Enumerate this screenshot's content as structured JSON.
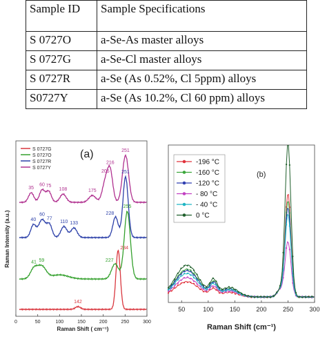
{
  "table": {
    "headers": [
      "Sample ID",
      "Sample Specifications"
    ],
    "rows": [
      [
        "S 0727O",
        "a-Se-As master alloys"
      ],
      [
        "S 0727G",
        "a-Se-Cl master alloys"
      ],
      [
        "S 0727R",
        "a-Se (As 0.52%, Cl 5ppm) alloys"
      ],
      [
        "S0727Y",
        "a-Se (As 10.2%, Cl 60 ppm) alloys"
      ]
    ]
  },
  "chart_data": [
    {
      "type": "line",
      "panel_label": "(a)",
      "xlabel": "Raman Shift ( cm⁻¹)",
      "ylabel": "Raman Intensity (a.u.)",
      "xlim": [
        0,
        300
      ],
      "xticks": [
        "0",
        "50",
        "100",
        "150",
        "200",
        "250",
        "300"
      ],
      "legend_position": "top-left",
      "series": [
        {
          "name": "S 0727G",
          "color": "#d9363e",
          "peaks": [
            142,
            234
          ]
        },
        {
          "name": "S 0727O",
          "color": "#33a02c",
          "peaks": [
            41,
            59,
            227,
            255
          ]
        },
        {
          "name": "S 0727R",
          "color": "#2b3fa8",
          "peaks": [
            40,
            60,
            77,
            110,
            133,
            228,
            251
          ]
        },
        {
          "name": "S 0727Y",
          "color": "#b0308f",
          "peaks": [
            35,
            60,
            75,
            108,
            175,
            205,
            216,
            251
          ]
        }
      ],
      "annotations": [
        {
          "text": "234",
          "series": "S 0727G",
          "x": 234
        },
        {
          "text": "142",
          "series": "S 0727G",
          "x": 142
        },
        {
          "text": "41",
          "series": "S 0727O",
          "x": 41
        },
        {
          "text": "59",
          "series": "S 0727O",
          "x": 59
        },
        {
          "text": "227",
          "series": "S 0727O",
          "x": 227
        },
        {
          "text": "255",
          "series": "S 0727O",
          "x": 255
        },
        {
          "text": "40",
          "series": "S 0727R",
          "x": 40
        },
        {
          "text": "60",
          "series": "S 0727R",
          "x": 60
        },
        {
          "text": "77",
          "series": "S 0727R",
          "x": 77
        },
        {
          "text": "110",
          "series": "S 0727R",
          "x": 110
        },
        {
          "text": "133",
          "series": "S 0727R",
          "x": 133
        },
        {
          "text": "228",
          "series": "S 0727R",
          "x": 228
        },
        {
          "text": "251",
          "series": "S 0727R",
          "x": 251
        },
        {
          "text": "35",
          "series": "S 0727Y",
          "x": 35
        },
        {
          "text": "60",
          "series": "S 0727Y",
          "x": 60
        },
        {
          "text": "75",
          "series": "S 0727Y",
          "x": 75
        },
        {
          "text": "108",
          "series": "S 0727Y",
          "x": 108
        },
        {
          "text": "175",
          "series": "S 0727Y",
          "x": 175
        },
        {
          "text": "205",
          "series": "S 0727Y",
          "x": 205
        },
        {
          "text": "216",
          "series": "S 0727Y",
          "x": 216
        },
        {
          "text": "251",
          "series": "S 0727Y",
          "x": 251
        }
      ]
    },
    {
      "type": "line",
      "panel_label": "(b)",
      "xlabel": "Raman Shift (cm⁻¹)",
      "ylabel": "",
      "xlim": [
        0,
        300
      ],
      "xticks": [
        "50",
        "100",
        "150",
        "200",
        "250",
        "300"
      ],
      "legend_position": "top-left",
      "series": [
        {
          "name": "-196 °C",
          "color": "#e0313a",
          "marker": "square",
          "peak_x": 250
        },
        {
          "name": "-160 °C",
          "color": "#3aa63a",
          "marker": "circle",
          "peak_x": 250
        },
        {
          "name": "-120 °C",
          "color": "#2f3fb0",
          "marker": "triangle",
          "peak_x": 250
        },
        {
          "name": "- 80 °C",
          "color": "#c13fc1",
          "marker": "triangle-down",
          "peak_x": 250
        },
        {
          "name": "- 40 °C",
          "color": "#1fb5c4",
          "marker": "diamond",
          "peak_x": 250
        },
        {
          "name": "0 °C",
          "color": "#1e5e2a",
          "marker": "circle",
          "peak_x": 250
        }
      ]
    }
  ]
}
